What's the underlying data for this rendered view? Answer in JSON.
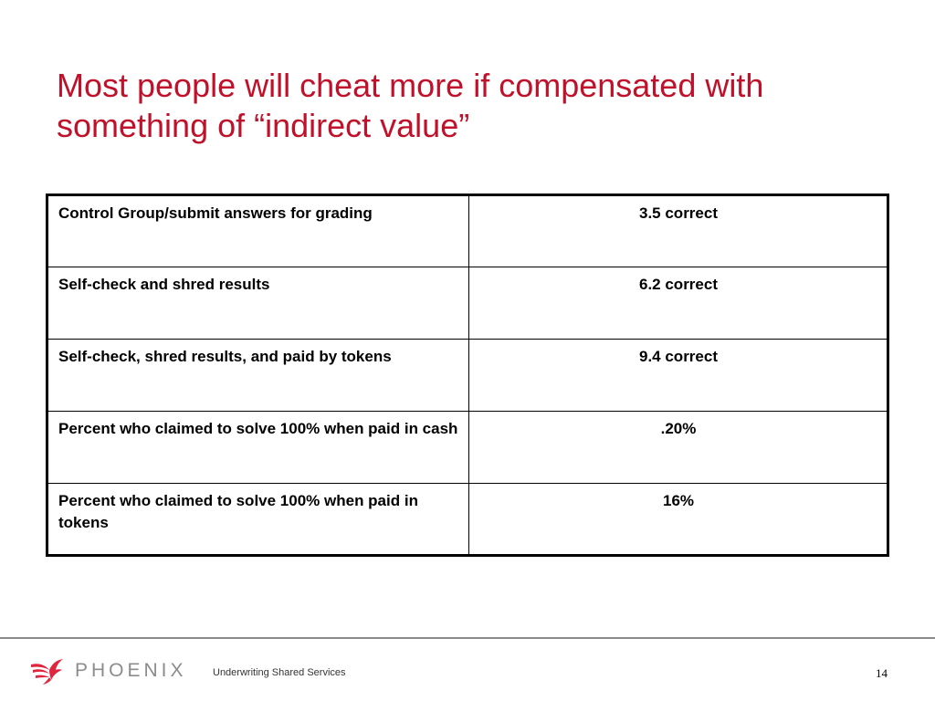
{
  "slide": {
    "title_lines": [
      "Most people will cheat more if compensated with",
      "something of “indirect value”"
    ],
    "title_color": "#c0112b"
  },
  "table": {
    "rows": [
      {
        "label": "Control Group/submit answers for grading",
        "value": "3.5 correct"
      },
      {
        "label": "Self-check and shred results",
        "value": "6.2 correct"
      },
      {
        "label": "Self-check, shred results, and paid by tokens",
        "value": "9.4 correct"
      },
      {
        "label": "Percent who claimed to solve 100% when paid in cash",
        "value": ".20%"
      },
      {
        "label": "Percent who claimed to solve 100% when paid in tokens",
        "value": "16%"
      }
    ]
  },
  "footer": {
    "logo_text": "PHOENIX",
    "logo_icon": "phoenix-bird-icon",
    "logo_color": "#e0263f",
    "tagline": "Underwriting Shared Services",
    "page_number": "14"
  }
}
